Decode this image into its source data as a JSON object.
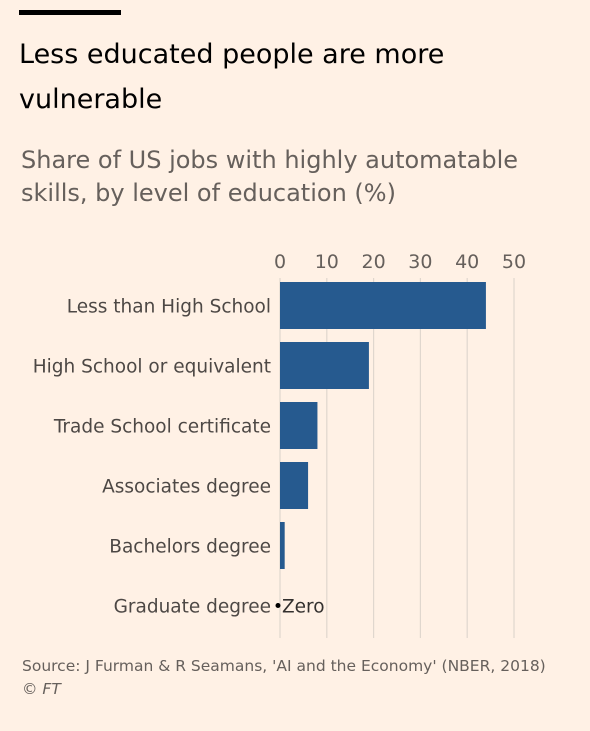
{
  "header": {
    "title": "Less educated people are more vulnerable",
    "subtitle": "Share of US jobs with highly automatable skills, by level of education (%)"
  },
  "chart_data": {
    "type": "bar",
    "orientation": "horizontal",
    "title": "Less educated people are more vulnerable",
    "subtitle": "Share of US jobs with highly automatable skills, by level of education (%)",
    "categories": [
      "Less than High School",
      "High School or equivalent",
      "Trade School certificate",
      "Associates degree",
      "Bachelors degree",
      "Graduate degree"
    ],
    "values": [
      44,
      19,
      8,
      6,
      1,
      0
    ],
    "xlim": [
      0,
      50
    ],
    "xticks": [
      0,
      10,
      20,
      30,
      40,
      50
    ],
    "xlabel": "",
    "ylabel": "",
    "grid": true,
    "legend": "none",
    "annotations": [
      {
        "category": "Graduate degree",
        "text": "Zero"
      }
    ],
    "colors": {
      "bar": "#265a8f",
      "grid": "#e0d7ce",
      "background": "#fff1e5"
    }
  },
  "footer": {
    "source": "Source: J Furman & R Seamans, 'AI and the Economy' (NBER, 2018)",
    "credit": "© FT"
  }
}
